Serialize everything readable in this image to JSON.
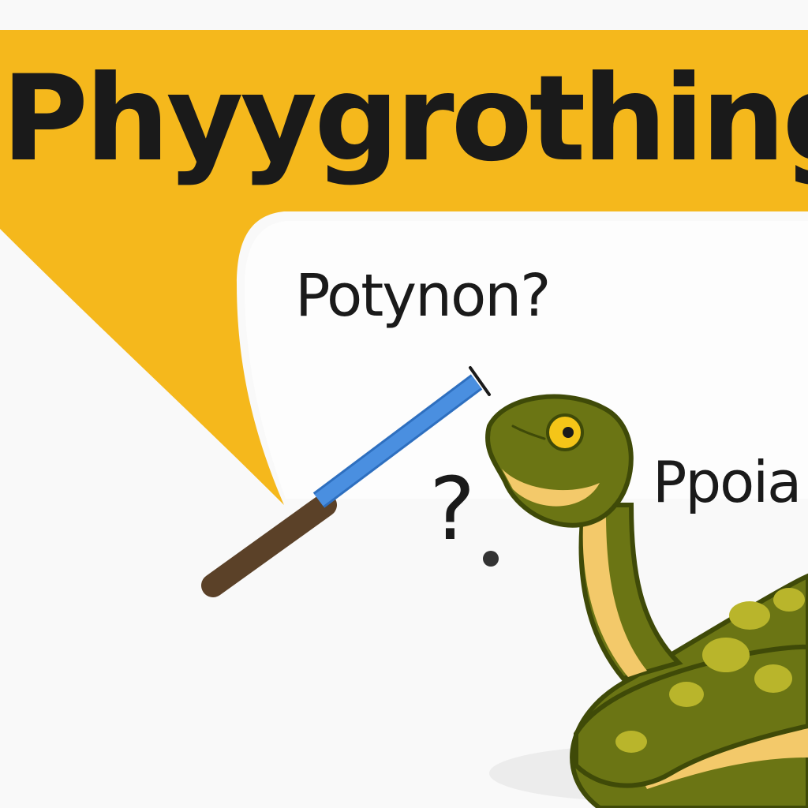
{
  "texts": {
    "banner_title": "Phyygrothing",
    "bubble_text": "Potynon?",
    "snake_label": "Ppoia",
    "question_mark": "?"
  },
  "colors": {
    "background": "#f9f9f9",
    "banner_yellow": "#f5b81c",
    "bubble_fill": "#fdfdfd",
    "snake_green": "#6b7514",
    "snake_dark": "#3f4a08",
    "snake_belly": "#f3c96a",
    "snake_spot": "#b9b52b",
    "wand_blue": "#4a8fe0",
    "wand_handle": "#5b4128"
  },
  "icons": {
    "wand": "magic-wand-icon",
    "snake": "python-snake-icon"
  }
}
